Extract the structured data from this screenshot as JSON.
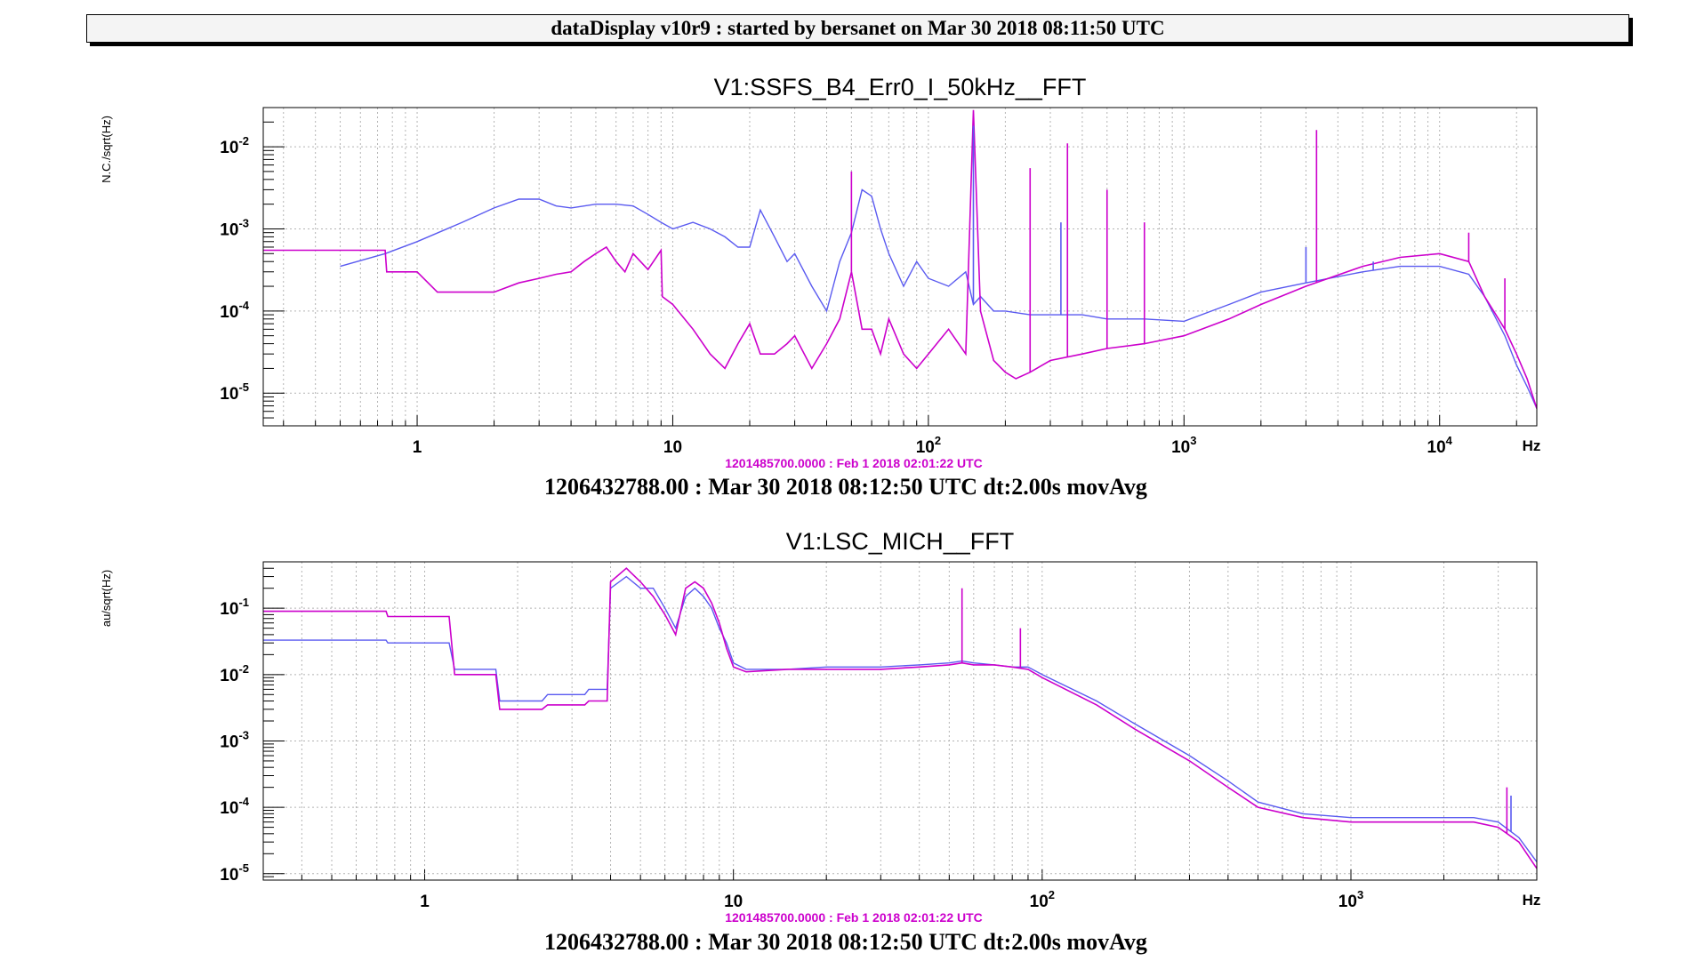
{
  "header": {
    "title": "dataDisplay v10r9 : started by bersanet on Mar 30 2018 08:11:50 UTC"
  },
  "colors": {
    "current": "#5a5af0",
    "reference": "#cc00cc",
    "grid": "#b4b4b4",
    "frame": "#000000",
    "header_bg": "#f4f4f4"
  },
  "chart_data": [
    {
      "type": "line",
      "title": "V1:SSFS_B4_Err0_I_50kHz__FFT",
      "ylabel": "N.C./sqrt(Hz)",
      "xunit": "Hz",
      "xscale": "log",
      "yscale": "log",
      "xlim": [
        0.25,
        24000
      ],
      "ylim": [
        4e-06,
        0.03
      ],
      "xticks": [
        1,
        10,
        100,
        1000,
        10000
      ],
      "xtick_labels": [
        {
          "base": "1",
          "exp": ""
        },
        {
          "base": "10",
          "exp": ""
        },
        {
          "base": "10",
          "exp": "2"
        },
        {
          "base": "10",
          "exp": "3"
        },
        {
          "base": "10",
          "exp": "4"
        }
      ],
      "yticks": [
        1e-05,
        0.0001,
        0.001,
        0.01
      ],
      "ytick_labels": [
        {
          "base": "10",
          "exp": "-5"
        },
        {
          "base": "10",
          "exp": "-4"
        },
        {
          "base": "10",
          "exp": "-3"
        },
        {
          "base": "10",
          "exp": "-2"
        }
      ],
      "grid": true,
      "reference_label": "1201485700.0000 : Feb  1 2018 02:01:22 UTC",
      "time_label": "1206432788.00 : Mar 30 2018 08:12:50 UTC dt:2.00s movAvg",
      "series": [
        {
          "role": "current",
          "x": [
            0.5,
            0.75,
            1,
            1.5,
            2,
            2.5,
            3,
            3.5,
            4,
            5,
            6,
            7,
            8,
            9,
            10,
            12,
            14,
            16,
            18,
            20,
            22,
            25,
            28,
            30,
            35,
            40,
            45,
            50,
            55,
            60,
            65,
            70,
            80,
            90,
            100,
            120,
            140,
            150,
            160,
            180,
            200,
            250,
            300,
            400,
            500,
            700,
            1000,
            1500,
            2000,
            3000,
            5000,
            7000,
            10000,
            13000,
            15000,
            18000,
            20000,
            22000,
            24000
          ],
          "y": [
            0.00035,
            0.0005,
            0.0007,
            0.0012,
            0.0018,
            0.0023,
            0.0023,
            0.0019,
            0.0018,
            0.002,
            0.002,
            0.0019,
            0.0015,
            0.0012,
            0.001,
            0.0012,
            0.001,
            0.0008,
            0.0006,
            0.0006,
            0.0017,
            0.0008,
            0.0004,
            0.0005,
            0.0002,
            0.0001,
            0.0004,
            0.0009,
            0.003,
            0.0025,
            0.001,
            0.0005,
            0.0002,
            0.0004,
            0.00025,
            0.0002,
            0.0003,
            0.00012,
            0.00015,
            0.0001,
            0.0001,
            9e-05,
            9e-05,
            9e-05,
            8e-05,
            8e-05,
            7.5e-05,
            0.00012,
            0.00017,
            0.00022,
            0.0003,
            0.00035,
            0.00035,
            0.00028,
            0.00015,
            5e-05,
            2.2e-05,
            1.2e-05,
            6.5e-06
          ]
        },
        {
          "role": "reference",
          "x": [
            0.25,
            0.75,
            0.76,
            1,
            1.2,
            1.5,
            2,
            2.5,
            3,
            3.5,
            4,
            4.5,
            5,
            5.5,
            6,
            6.5,
            7,
            8,
            9,
            9.1,
            10,
            12,
            14,
            16,
            18,
            20,
            22,
            25,
            28,
            30,
            35,
            40,
            45,
            50,
            55,
            60,
            65,
            70,
            80,
            90,
            100,
            120,
            140,
            150,
            160,
            180,
            200,
            220,
            250,
            300,
            400,
            500,
            700,
            1000,
            1500,
            2000,
            3000,
            5000,
            7000,
            10000,
            13000,
            15000,
            18000,
            20000,
            22000,
            24000
          ],
          "y": [
            0.00055,
            0.00055,
            0.0003,
            0.0003,
            0.00017,
            0.00017,
            0.00017,
            0.00022,
            0.00025,
            0.00028,
            0.0003,
            0.0004,
            0.0005,
            0.0006,
            0.0004,
            0.0003,
            0.0005,
            0.00032,
            0.00055,
            0.00015,
            0.00012,
            6e-05,
            3e-05,
            2e-05,
            4e-05,
            7e-05,
            3e-05,
            3e-05,
            4e-05,
            5e-05,
            2e-05,
            4e-05,
            8e-05,
            0.0003,
            6e-05,
            6e-05,
            3e-05,
            8e-05,
            3e-05,
            2e-05,
            3e-05,
            6e-05,
            3e-05,
            0.028,
            0.0001,
            2.5e-05,
            1.8e-05,
            1.5e-05,
            1.8e-05,
            2.5e-05,
            3e-05,
            3.5e-05,
            4e-05,
            5e-05,
            8e-05,
            0.00012,
            0.0002,
            0.00035,
            0.00045,
            0.0005,
            0.0004,
            0.00015,
            6e-05,
            3e-05,
            1.5e-05,
            6.5e-06
          ]
        }
      ],
      "spikes": [
        {
          "role": "current",
          "x": 150,
          "y": 0.018
        },
        {
          "role": "current",
          "x": 330,
          "y": 0.0012
        },
        {
          "role": "current",
          "x": 3000,
          "y": 0.0006
        },
        {
          "role": "current",
          "x": 5500,
          "y": 0.0004
        },
        {
          "role": "reference",
          "x": 50,
          "y": 0.005
        },
        {
          "role": "reference",
          "x": 250,
          "y": 0.0055
        },
        {
          "role": "reference",
          "x": 350,
          "y": 0.011
        },
        {
          "role": "reference",
          "x": 500,
          "y": 0.003
        },
        {
          "role": "reference",
          "x": 700,
          "y": 0.0012
        },
        {
          "role": "reference",
          "x": 3300,
          "y": 0.016
        },
        {
          "role": "reference",
          "x": 13000,
          "y": 0.0009
        },
        {
          "role": "reference",
          "x": 18000,
          "y": 0.00025
        }
      ]
    },
    {
      "type": "line",
      "title": "V1:LSC_MICH__FFT",
      "ylabel": "au/sqrt(Hz)",
      "xunit": "Hz",
      "xscale": "log",
      "yscale": "log",
      "xlim": [
        0.3,
        4000
      ],
      "ylim": [
        8e-06,
        0.5
      ],
      "xticks": [
        1,
        10,
        100,
        1000
      ],
      "xtick_labels": [
        {
          "base": "1",
          "exp": ""
        },
        {
          "base": "10",
          "exp": ""
        },
        {
          "base": "10",
          "exp": "2"
        },
        {
          "base": "10",
          "exp": "3"
        }
      ],
      "yticks": [
        1e-05,
        0.0001,
        0.001,
        0.01,
        0.1
      ],
      "ytick_labels": [
        {
          "base": "10",
          "exp": "-5"
        },
        {
          "base": "10",
          "exp": "-4"
        },
        {
          "base": "10",
          "exp": "-3"
        },
        {
          "base": "10",
          "exp": "-2"
        },
        {
          "base": "10",
          "exp": "-1"
        }
      ],
      "grid": true,
      "reference_label": "1201485700.0000 : Feb  1 2018 02:01:22 UTC",
      "time_label": "1206432788.00 : Mar 30 2018 08:12:50 UTC dt:2.00s movAvg",
      "series": [
        {
          "role": "current",
          "x": [
            0.3,
            0.75,
            0.76,
            1.2,
            1.25,
            1.7,
            1.75,
            2.4,
            2.5,
            3.3,
            3.4,
            3.9,
            4,
            4.5,
            5,
            5.5,
            6,
            6.5,
            7,
            7.5,
            8,
            8.5,
            9,
            9.5,
            10,
            11,
            15,
            20,
            30,
            40,
            50,
            55,
            60,
            70,
            80,
            90,
            100,
            150,
            200,
            300,
            400,
            500,
            700,
            1000,
            1500,
            2000,
            2500,
            3000,
            3500,
            4000
          ],
          "y": [
            0.033,
            0.033,
            0.03,
            0.03,
            0.012,
            0.012,
            0.004,
            0.004,
            0.005,
            0.005,
            0.006,
            0.006,
            0.2,
            0.3,
            0.2,
            0.2,
            0.1,
            0.05,
            0.15,
            0.2,
            0.15,
            0.1,
            0.05,
            0.03,
            0.015,
            0.012,
            0.012,
            0.013,
            0.013,
            0.014,
            0.015,
            0.016,
            0.015,
            0.014,
            0.013,
            0.013,
            0.01,
            0.004,
            0.0018,
            0.0006,
            0.00025,
            0.00012,
            8e-05,
            7e-05,
            7e-05,
            7e-05,
            7e-05,
            6e-05,
            3.5e-05,
            1.5e-05
          ]
        },
        {
          "role": "reference",
          "x": [
            0.3,
            0.75,
            0.76,
            1.2,
            1.25,
            1.7,
            1.75,
            2.4,
            2.5,
            3.3,
            3.4,
            3.9,
            4,
            4.5,
            5,
            5.5,
            6,
            6.5,
            7,
            7.5,
            8,
            8.5,
            9,
            9.5,
            10,
            11,
            15,
            20,
            30,
            40,
            50,
            55,
            60,
            70,
            80,
            90,
            100,
            150,
            200,
            300,
            400,
            500,
            700,
            1000,
            1500,
            2000,
            2500,
            3000,
            3500,
            4000
          ],
          "y": [
            0.09,
            0.09,
            0.075,
            0.075,
            0.01,
            0.01,
            0.003,
            0.003,
            0.0035,
            0.0035,
            0.004,
            0.004,
            0.25,
            0.4,
            0.25,
            0.15,
            0.08,
            0.04,
            0.2,
            0.25,
            0.2,
            0.12,
            0.06,
            0.025,
            0.013,
            0.011,
            0.012,
            0.012,
            0.012,
            0.013,
            0.014,
            0.015,
            0.014,
            0.014,
            0.013,
            0.012,
            0.009,
            0.0035,
            0.0015,
            0.0005,
            0.0002,
            0.0001,
            7e-05,
            6e-05,
            6e-05,
            6e-05,
            6e-05,
            5e-05,
            3e-05,
            1.2e-05
          ]
        }
      ],
      "spikes": [
        {
          "role": "reference",
          "x": 55,
          "y": 0.2
        },
        {
          "role": "reference",
          "x": 85,
          "y": 0.05
        },
        {
          "role": "reference",
          "x": 3200,
          "y": 0.0002
        },
        {
          "role": "current",
          "x": 3300,
          "y": 0.00015
        }
      ]
    }
  ]
}
